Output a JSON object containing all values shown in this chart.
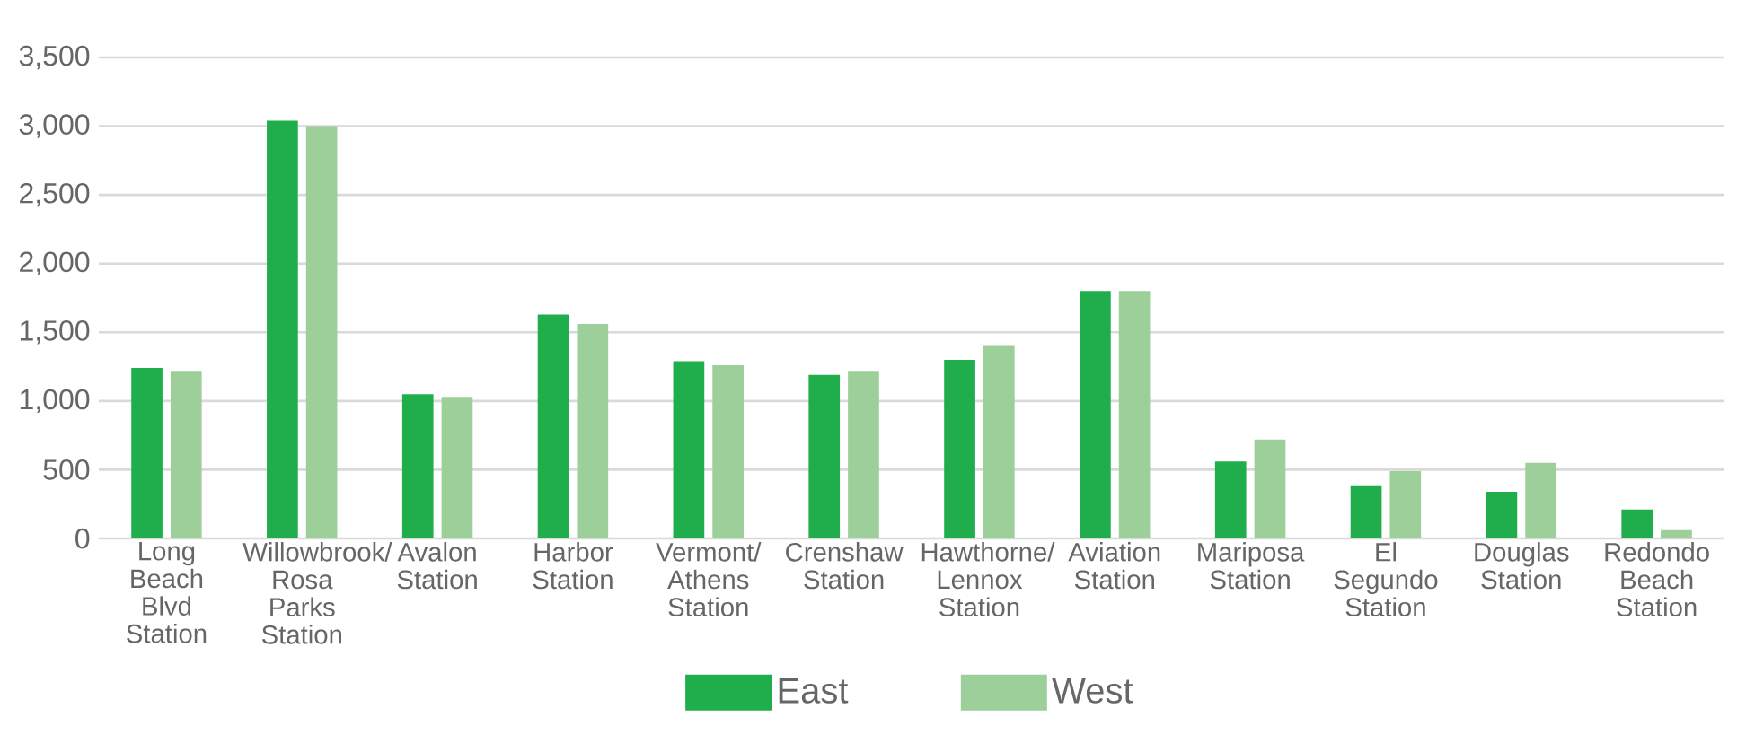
{
  "chart_data": {
    "type": "bar",
    "categories": [
      "Long Beach Blvd Station",
      "Willowbrook/Rosa Parks Station",
      "Avalon Station",
      "Harbor Station",
      "Vermont/Athens Station",
      "Crenshaw Station",
      "Hawthorne/Lennox Station",
      "Aviation Station",
      "Mariposa Station",
      "El Segundo Station",
      "Douglas Station",
      "Redondo Beach Station"
    ],
    "series": [
      {
        "name": "East",
        "color": "#1fae4b",
        "values": [
          1240,
          3040,
          1050,
          1630,
          1290,
          1190,
          1300,
          1800,
          560,
          380,
          340,
          210
        ]
      },
      {
        "name": "West",
        "color": "#9dcf9a",
        "values": [
          1220,
          3000,
          1030,
          1560,
          1260,
          1220,
          1400,
          1800,
          720,
          490,
          550,
          60
        ]
      }
    ],
    "ylim": [
      0,
      3500
    ],
    "yticks": [
      0,
      500,
      {
        "value": 1000,
        "label": "1,000"
      },
      {
        "value": 1500,
        "label": "1,500"
      },
      {
        "value": 2000,
        "label": "2,000"
      },
      {
        "value": 2500,
        "label": "2,500"
      },
      {
        "value": 3000,
        "label": "3,000"
      },
      {
        "value": 3500,
        "label": "3,500"
      }
    ],
    "grid": "y",
    "legend": "bottom"
  }
}
